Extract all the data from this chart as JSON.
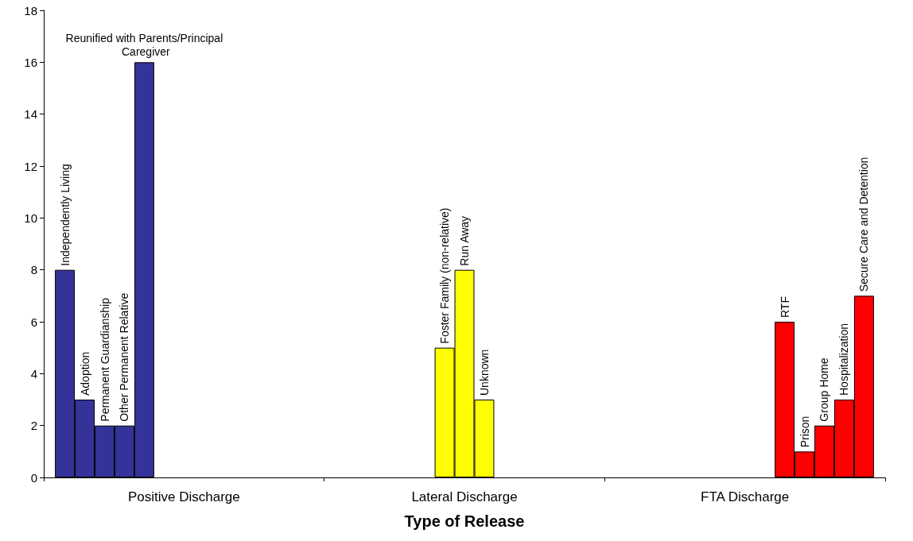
{
  "chart_data": {
    "type": "bar",
    "xlabel": "Type of Release",
    "categories": [
      "Positive Discharge",
      "Lateral Discharge",
      "FTA Discharge"
    ],
    "ylim": [
      0,
      18
    ],
    "yticks": [
      0,
      2,
      4,
      6,
      8,
      10,
      12,
      14,
      16,
      18
    ],
    "grid": false,
    "legend": false,
    "series": [
      {
        "name": "Independently Living",
        "color": "#333399",
        "values": [
          8,
          null,
          null
        ]
      },
      {
        "name": "Adoption",
        "color": "#333399",
        "values": [
          3,
          null,
          null
        ]
      },
      {
        "name": "Permanent Guardianship",
        "color": "#333399",
        "values": [
          2,
          null,
          null
        ]
      },
      {
        "name": "Other Permanent Relative",
        "color": "#333399",
        "values": [
          2,
          null,
          null
        ]
      },
      {
        "name": "Reunified with Parents/Principal Caregiver",
        "color": "#333399",
        "values": [
          16,
          null,
          null
        ]
      },
      {
        "name": "Foster Family (non-relative)",
        "color": "#ffff00",
        "values": [
          null,
          5,
          null
        ]
      },
      {
        "name": "Run Away",
        "color": "#ffff00",
        "values": [
          null,
          8,
          null
        ]
      },
      {
        "name": "Unknown",
        "color": "#ffff00",
        "values": [
          null,
          3,
          null
        ]
      },
      {
        "name": "RTF",
        "color": "#ff0000",
        "values": [
          null,
          null,
          6
        ]
      },
      {
        "name": "Prison",
        "color": "#ff0000",
        "values": [
          null,
          null,
          1
        ]
      },
      {
        "name": "Group Home",
        "color": "#ff0000",
        "values": [
          null,
          null,
          2
        ]
      },
      {
        "name": "Hospitalization",
        "color": "#ff0000",
        "values": [
          null,
          null,
          3
        ]
      },
      {
        "name": "Secure Care and Detention",
        "color": "#ff0000",
        "values": [
          null,
          null,
          7
        ]
      }
    ]
  }
}
